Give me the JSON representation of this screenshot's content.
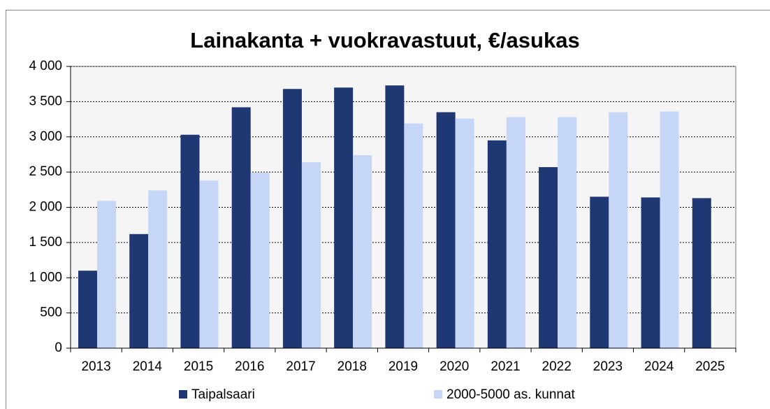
{
  "chart_data": {
    "type": "bar",
    "title": "Lainakanta + vuokravastuut, €/asukas",
    "categories": [
      "2013",
      "2014",
      "2015",
      "2016",
      "2017",
      "2018",
      "2019",
      "2020",
      "2021",
      "2022",
      "2023",
      "2024",
      "2025"
    ],
    "series": [
      {
        "name": "Taipalsaari",
        "color": "#1f3773",
        "values": [
          1100,
          1620,
          3030,
          3420,
          3680,
          3700,
          3730,
          3350,
          2950,
          2570,
          2150,
          2140,
          2130
        ]
      },
      {
        "name": "2000-5000 as. kunnat",
        "color": "#c6d6f7",
        "values": [
          2090,
          2240,
          2380,
          2490,
          2640,
          2740,
          3190,
          3260,
          3280,
          3280,
          3350,
          3360,
          null
        ]
      }
    ],
    "ylim": [
      0,
      4000
    ],
    "yticks": [
      0,
      500,
      {
        "value": 1000,
        "label": "1 000"
      },
      {
        "value": 1500,
        "label": "1 500"
      },
      {
        "value": 2000,
        "label": "2 000"
      },
      {
        "value": 2500,
        "label": "2 500"
      },
      {
        "value": 3000,
        "label": "3 000"
      },
      {
        "value": 3500,
        "label": "3 500"
      },
      {
        "value": 4000,
        "label": "4 000"
      }
    ],
    "grid": true,
    "legend": "bottom"
  }
}
